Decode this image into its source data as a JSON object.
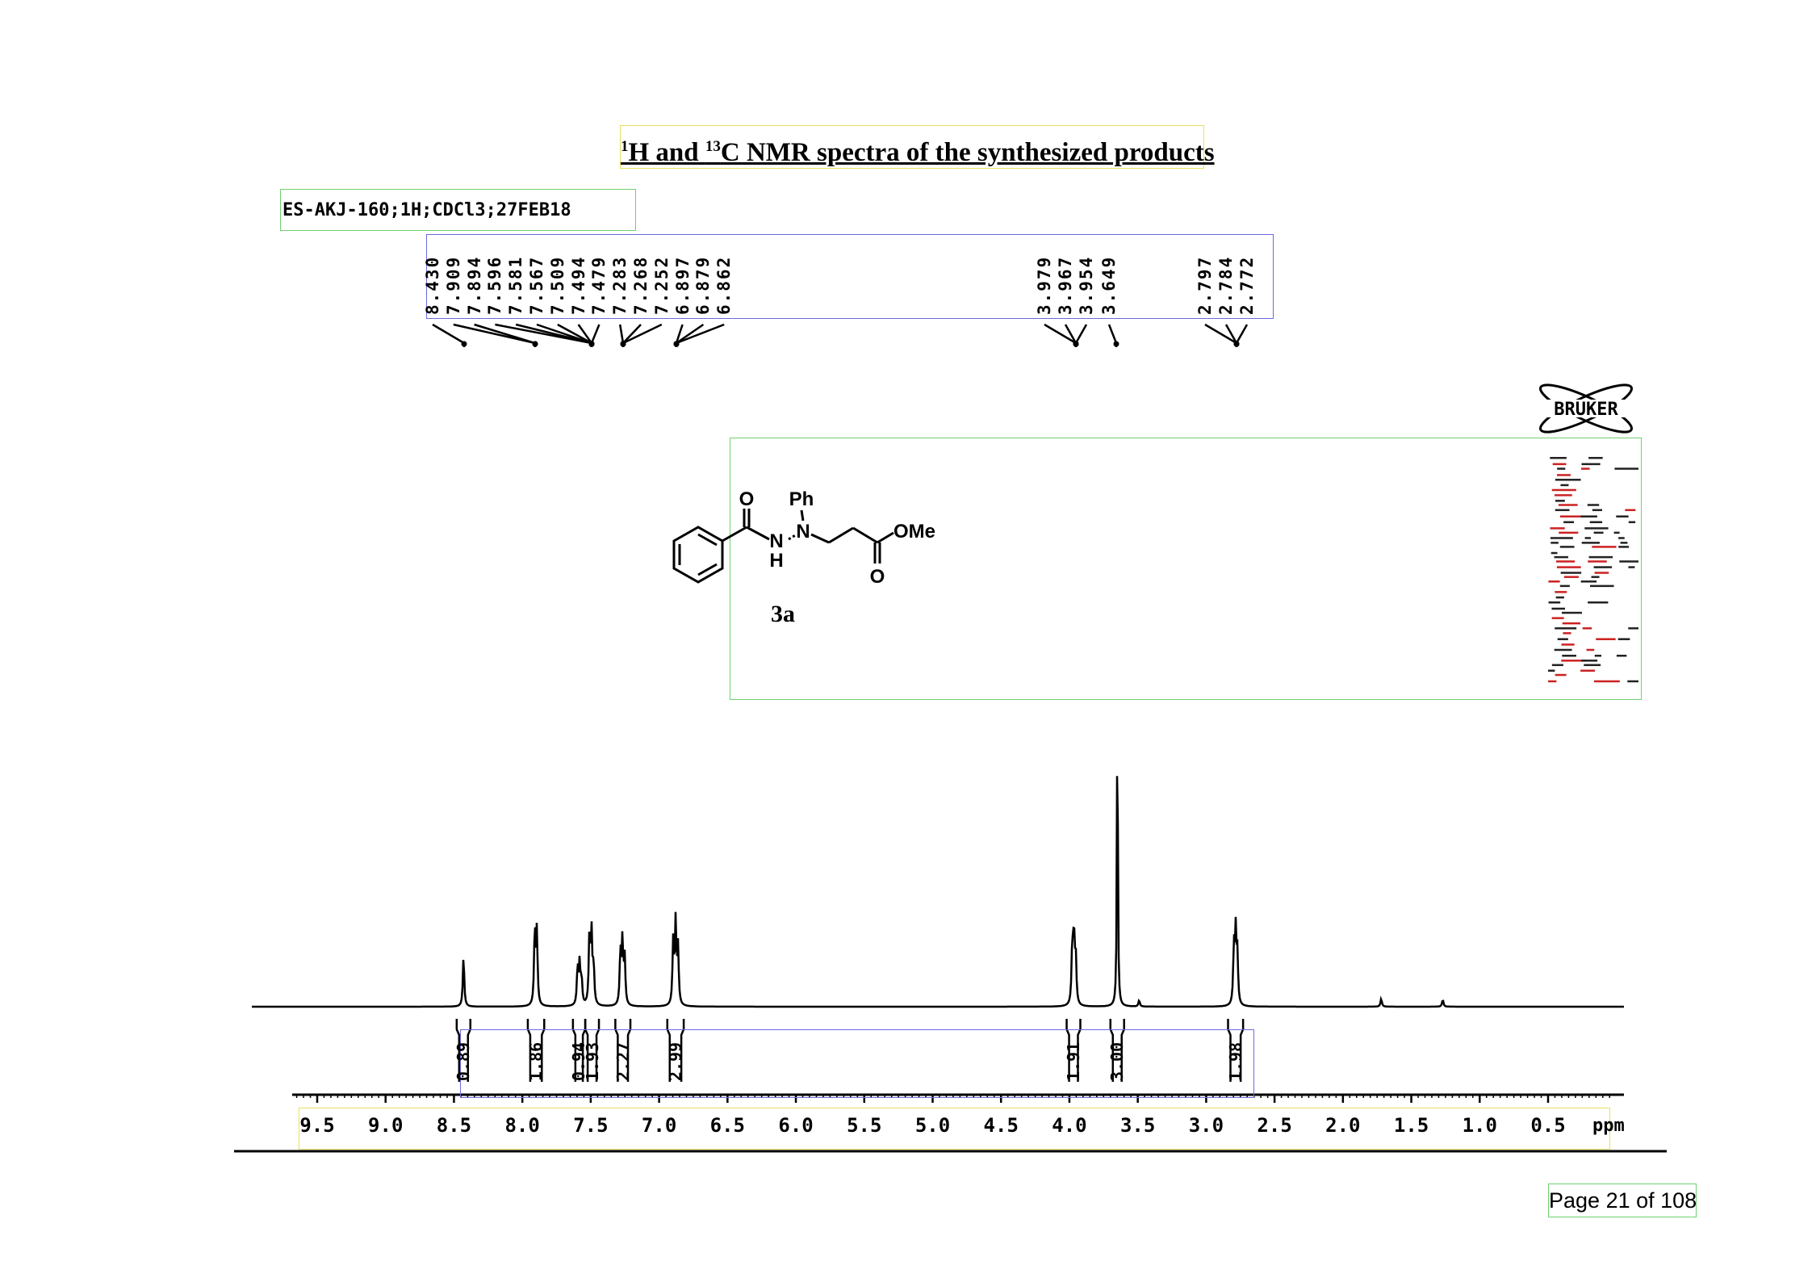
{
  "title": {
    "sup1": "1",
    "part1": "H and ",
    "sup2": "13",
    "part2": "C NMR spectra of the synthesized products"
  },
  "sample_label": "ES-AKJ-160;1H;CDCl3;27FEB18",
  "peak_labels": [
    "8.430",
    "7.909",
    "7.894",
    "7.596",
    "7.581",
    "7.567",
    "7.509",
    "7.494",
    "7.479",
    "7.283",
    "7.268",
    "7.252",
    "6.897",
    "6.879",
    "6.862",
    "3.979",
    "3.967",
    "3.954",
    "3.649",
    "2.797",
    "2.784",
    "2.772"
  ],
  "logo": {
    "text": "BRUKER"
  },
  "structure": {
    "labels": {
      "carbonyl_o": "O",
      "phenyl": "Ph",
      "nh_n": "N",
      "nh_h": "H",
      "n2": "N",
      "ome": "OMe",
      "ester_o": "O"
    },
    "compound_id": "3a"
  },
  "chart_data": {
    "type": "line",
    "title": "",
    "xlabel": "ppm",
    "ylabel": "",
    "xlim": [
      9.8,
      0.0
    ],
    "x_reversed": true,
    "x_ticks": [
      "9.5",
      "9.0",
      "8.5",
      "8.0",
      "7.5",
      "7.0",
      "6.5",
      "6.0",
      "5.5",
      "5.0",
      "4.5",
      "4.0",
      "3.5",
      "3.0",
      "2.5",
      "2.0",
      "1.5",
      "1.0",
      "0.5"
    ],
    "peaks": [
      {
        "ppm": 8.43,
        "height": 0.16
      },
      {
        "ppm": 7.909,
        "height": 0.24
      },
      {
        "ppm": 7.894,
        "height": 0.23
      },
      {
        "ppm": 7.596,
        "height": 0.12
      },
      {
        "ppm": 7.581,
        "height": 0.13
      },
      {
        "ppm": 7.567,
        "height": 0.08
      },
      {
        "ppm": 7.509,
        "height": 0.23
      },
      {
        "ppm": 7.494,
        "height": 0.22
      },
      {
        "ppm": 7.479,
        "height": 0.12
      },
      {
        "ppm": 7.283,
        "height": 0.17
      },
      {
        "ppm": 7.268,
        "height": 0.2
      },
      {
        "ppm": 7.252,
        "height": 0.15
      },
      {
        "ppm": 6.897,
        "height": 0.2
      },
      {
        "ppm": 6.879,
        "height": 0.26
      },
      {
        "ppm": 6.862,
        "height": 0.18
      },
      {
        "ppm": 3.979,
        "height": 0.18
      },
      {
        "ppm": 3.967,
        "height": 0.22
      },
      {
        "ppm": 3.954,
        "height": 0.15
      },
      {
        "ppm": 3.649,
        "height": 1.0
      },
      {
        "ppm": 3.49,
        "height": 0.02
      },
      {
        "ppm": 2.797,
        "height": 0.18
      },
      {
        "ppm": 2.784,
        "height": 0.22
      },
      {
        "ppm": 2.772,
        "height": 0.15
      },
      {
        "ppm": 1.72,
        "height": 0.025
      },
      {
        "ppm": 1.27,
        "height": 0.022
      }
    ],
    "integrals": [
      {
        "from": 8.48,
        "to": 8.38,
        "value": "0.89"
      },
      {
        "from": 7.96,
        "to": 7.84,
        "value": "1.86"
      },
      {
        "from": 7.63,
        "to": 7.54,
        "value": "0.94"
      },
      {
        "from": 7.54,
        "to": 7.44,
        "value": "1.93"
      },
      {
        "from": 7.32,
        "to": 7.21,
        "value": "2.27"
      },
      {
        "from": 6.94,
        "to": 6.82,
        "value": "2.99"
      },
      {
        "from": 4.02,
        "to": 3.92,
        "value": "1.91"
      },
      {
        "from": 3.7,
        "to": 3.6,
        "value": "3.00"
      },
      {
        "from": 2.84,
        "to": 2.73,
        "value": "1.98"
      }
    ]
  },
  "page": {
    "label_page": "Page ",
    "current": "21",
    "label_of": " of ",
    "total": "108"
  }
}
